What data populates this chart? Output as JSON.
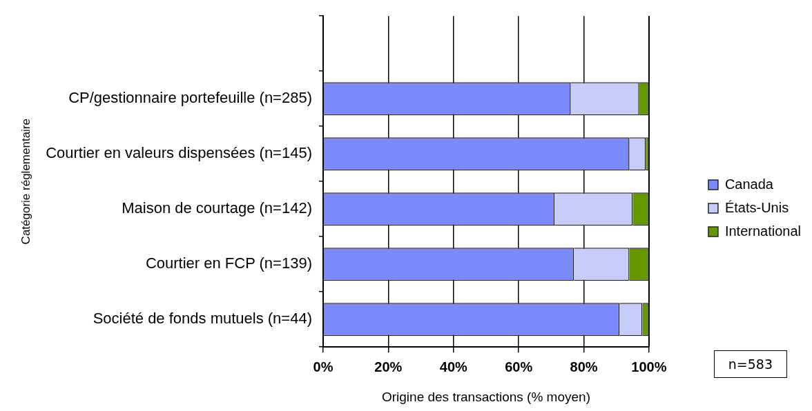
{
  "chart_data": {
    "type": "bar",
    "orientation": "horizontal",
    "stacked": true,
    "xlabel": "Origine des transactions (% moyen)",
    "ylabel": "Catégorie réglementaire",
    "categories": [
      null,
      "CP/gestionnaire portefeuille (n=285)",
      "Courtier en valeurs dispensées (n=145)",
      "Maison de courtage (n=142)",
      "Courtier en FCP (n=139)",
      "Société de fonds mutuels (n=44)"
    ],
    "series": [
      {
        "name": "Canada",
        "color": "#7a8afa",
        "values": [
          null,
          76,
          94,
          71,
          77,
          91
        ]
      },
      {
        "name": "États-Unis",
        "color": "#c7cdfb",
        "values": [
          null,
          21,
          5,
          24,
          17,
          7
        ]
      },
      {
        "name": "International",
        "color": "#669900",
        "values": [
          null,
          3,
          1,
          5,
          6,
          2
        ]
      }
    ],
    "xlim": [
      0,
      100
    ],
    "xticks": [
      {
        "value": 0,
        "label": "0%"
      },
      {
        "value": 20,
        "label": "20%"
      },
      {
        "value": 40,
        "label": "40%"
      },
      {
        "value": 60,
        "label": "60%"
      },
      {
        "value": 80,
        "label": "80%"
      },
      {
        "value": 100,
        "label": "100%"
      }
    ],
    "grid": "x",
    "legend": "right",
    "annotations": [
      "n=583"
    ]
  }
}
